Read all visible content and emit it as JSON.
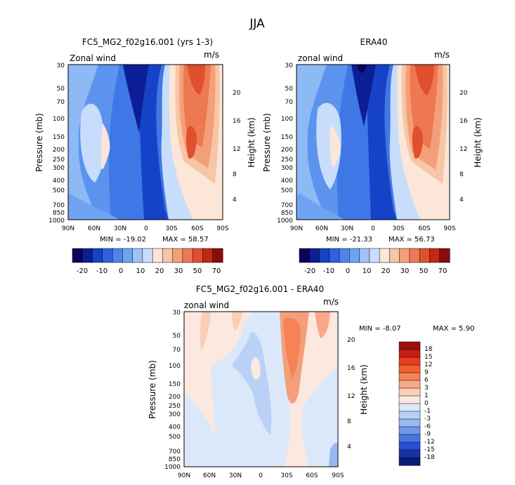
{
  "figure": {
    "title": "JJA"
  },
  "chart_data": [
    {
      "type": "heatmap",
      "title": "FC5_MG2_f02g16.001 (yrs 1-3)",
      "subtitle_left": "Zonal wind",
      "units": "m/s",
      "ylabel": "Pressure (mb)",
      "ylabel_right": "Height (km)",
      "x_ticks": [
        "90N",
        "60N",
        "30N",
        "0",
        "30S",
        "60S",
        "90S"
      ],
      "y_ticks": [
        "30",
        "50",
        "70",
        "100",
        "150",
        "200",
        "250",
        "300",
        "400",
        "500",
        "700",
        "850",
        "1000"
      ],
      "height_ticks": [
        "20",
        "16",
        "12",
        "8",
        "4"
      ],
      "min_label": "MIN = -19.02",
      "max_label": "MAX = 58.57",
      "colorbar_labels": [
        "-20",
        "-10",
        "0",
        "10",
        "20",
        "30",
        "50",
        "70"
      ],
      "colorbar_colors": [
        "#08045c",
        "#0c1e96",
        "#1642c8",
        "#2c64dc",
        "#4a84ec",
        "#6fa3f2",
        "#9cc2f7",
        "#c8ddfb",
        "#fbe6d8",
        "#f7c6a6",
        "#f3a07a",
        "#ee7851",
        "#e04f2e",
        "#c02818",
        "#8c0c0a"
      ]
    },
    {
      "type": "heatmap",
      "title": "ERA40",
      "subtitle_left": "zonal wind",
      "units": "m/s",
      "ylabel": "Pressure (mb)",
      "ylabel_right": "Height (km)",
      "x_ticks": [
        "90N",
        "60N",
        "30N",
        "0",
        "30S",
        "60S",
        "90S"
      ],
      "y_ticks": [
        "30",
        "50",
        "70",
        "100",
        "150",
        "200",
        "250",
        "300",
        "400",
        "500",
        "700",
        "850",
        "1000"
      ],
      "height_ticks": [
        "20",
        "16",
        "12",
        "8",
        "4"
      ],
      "min_label": "MIN = -21.33",
      "max_label": "MAX = 56.73",
      "colorbar_labels": [
        "-20",
        "-10",
        "0",
        "10",
        "20",
        "30",
        "50",
        "70"
      ],
      "colorbar_colors": [
        "#08045c",
        "#0c1e96",
        "#1642c8",
        "#2c64dc",
        "#4a84ec",
        "#6fa3f2",
        "#9cc2f7",
        "#c8ddfb",
        "#fbe6d8",
        "#f7c6a6",
        "#f3a07a",
        "#ee7851",
        "#e04f2e",
        "#c02818",
        "#8c0c0a"
      ]
    },
    {
      "type": "heatmap",
      "title": "FC5_MG2_f02g16.001 - ERA40",
      "subtitle_left": "zonal wind",
      "units": "m/s",
      "ylabel": "Pressure (mb)",
      "ylabel_right": "Height (km)",
      "x_ticks": [
        "90N",
        "60N",
        "30N",
        "0",
        "30S",
        "60S",
        "90S"
      ],
      "y_ticks": [
        "30",
        "50",
        "70",
        "100",
        "150",
        "200",
        "250",
        "300",
        "400",
        "500",
        "700",
        "850",
        "1000"
      ],
      "height_ticks": [
        "20",
        "16",
        "12",
        "8",
        "4"
      ],
      "min_label": "MIN = -8.07",
      "max_label": "MAX = 5.90",
      "colorbar_labels": [
        "18",
        "15",
        "12",
        "9",
        "6",
        "3",
        "1",
        "0",
        "-1",
        "-3",
        "-6",
        "-9",
        "-12",
        "-15",
        "-18"
      ],
      "colorbar_colors": [
        "#9a0f10",
        "#c42012",
        "#e63d1f",
        "#f2602e",
        "#f58357",
        "#f8a888",
        "#fbcdb8",
        "#fce8de",
        "#dbe8fa",
        "#b9d1f6",
        "#97b8f1",
        "#6f97eb",
        "#4a74e4",
        "#2a4fd2",
        "#1733a8",
        "#0c1a78"
      ]
    }
  ]
}
